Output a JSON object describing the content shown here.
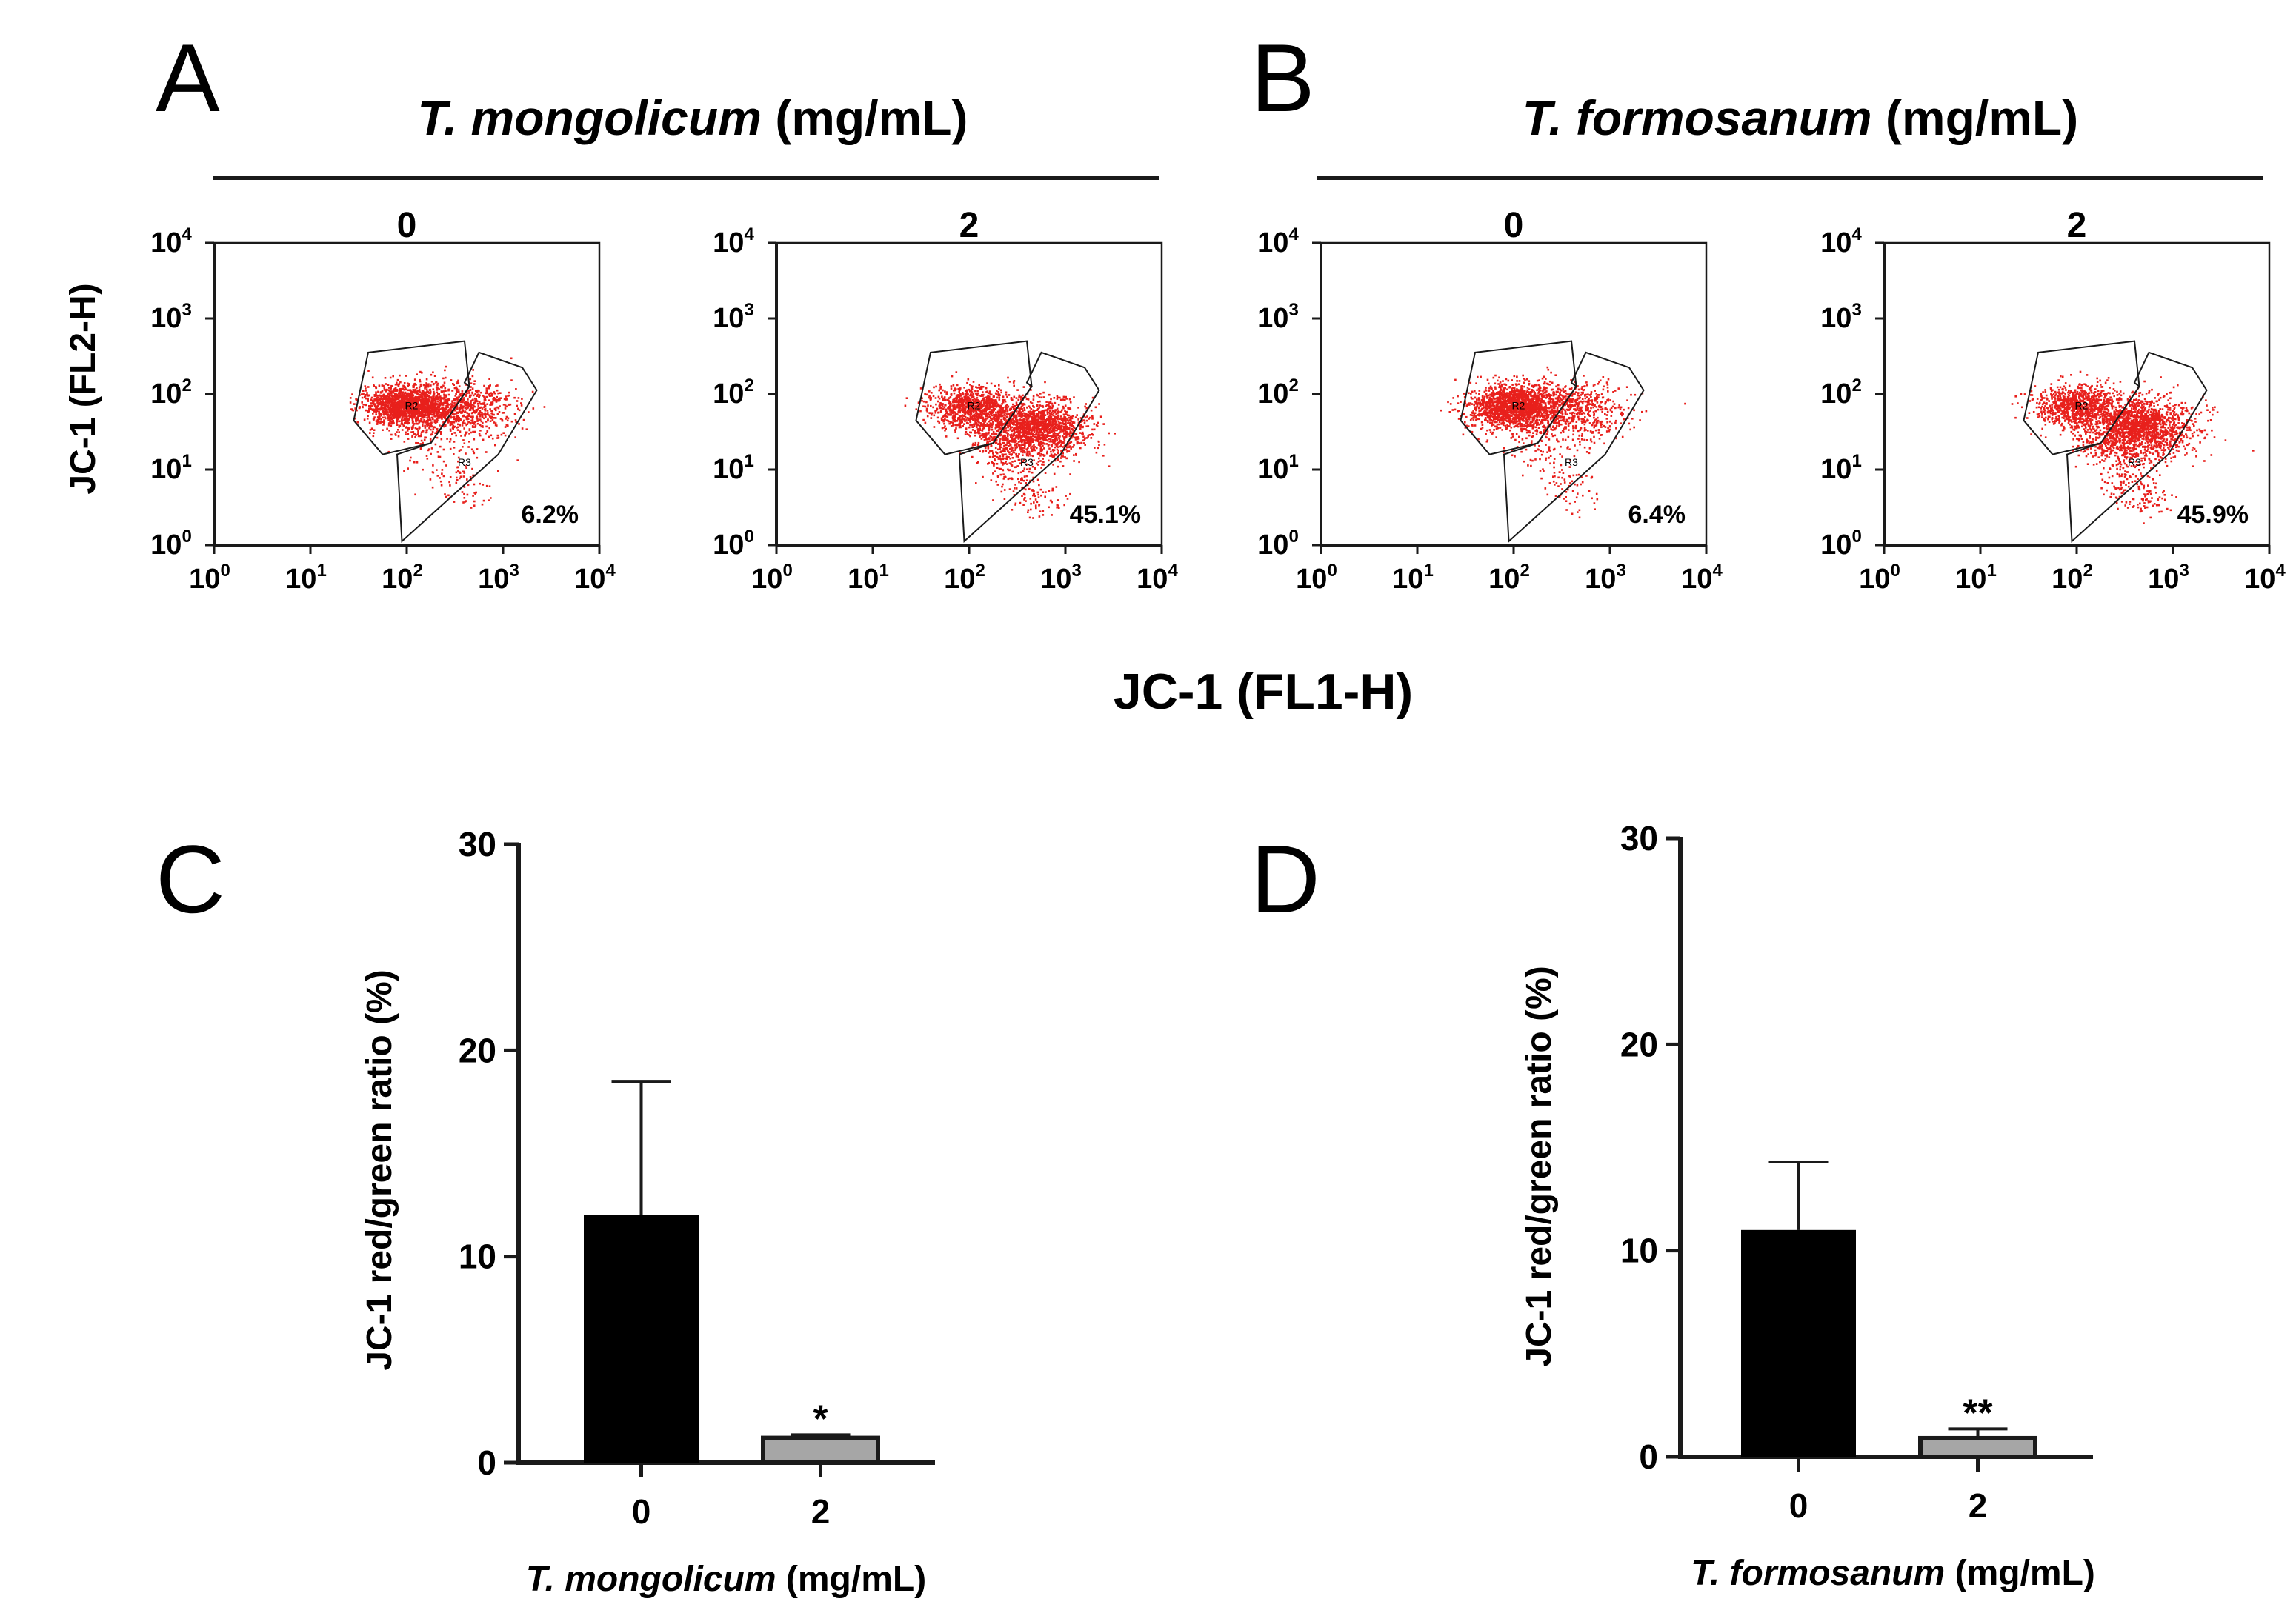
{
  "colors": {
    "dots": "#e8201c",
    "line": "#1a1a1a",
    "bar_control": "#000000",
    "bar_treated": "#a6a6a6"
  },
  "panel_letters": [
    "A",
    "B",
    "C",
    "D"
  ],
  "flow": {
    "y_axis_title": "JC-1 (FL2-H)",
    "x_axis_title": "JC-1 (FL1-H)",
    "tick_base": "10",
    "tick_exponents": [
      "0",
      "1",
      "2",
      "3",
      "4"
    ],
    "gate_labels": [
      "R2",
      "R3"
    ],
    "groups": [
      {
        "species": "T. mongolicum",
        "unit": "(mg/mL)",
        "plots": [
          {
            "concentration": "0",
            "percent": "6.2%"
          },
          {
            "concentration": "2",
            "percent": "45.1%"
          }
        ]
      },
      {
        "species": "T. formosanum",
        "unit": "(mg/mL)",
        "plots": [
          {
            "concentration": "0",
            "percent": "6.4%"
          },
          {
            "concentration": "2",
            "percent": "45.9%"
          }
        ]
      }
    ]
  },
  "chart_data": [
    {
      "panel": "C",
      "type": "bar",
      "categories": [
        "0",
        "2"
      ],
      "values": [
        12.0,
        1.2
      ],
      "error": [
        6.5,
        0.15
      ],
      "significance": [
        "",
        "*"
      ],
      "ylabel": "JC-1 red/green ratio (%)",
      "xlabel_species": "T. mongolicum",
      "xlabel_unit": "(mg/mL)",
      "ylim": [
        0,
        30
      ],
      "yticks": [
        "0",
        "10",
        "20",
        "30"
      ]
    },
    {
      "panel": "D",
      "type": "bar",
      "categories": [
        "0",
        "2"
      ],
      "values": [
        11.0,
        0.9
      ],
      "error": [
        3.3,
        0.45
      ],
      "significance": [
        "",
        "**"
      ],
      "ylabel": "JC-1 red/green ratio (%)",
      "xlabel_species": "T. formosanum",
      "xlabel_unit": "(mg/mL)",
      "ylim": [
        0,
        30
      ],
      "yticks": [
        "0",
        "10",
        "20",
        "30"
      ]
    }
  ]
}
